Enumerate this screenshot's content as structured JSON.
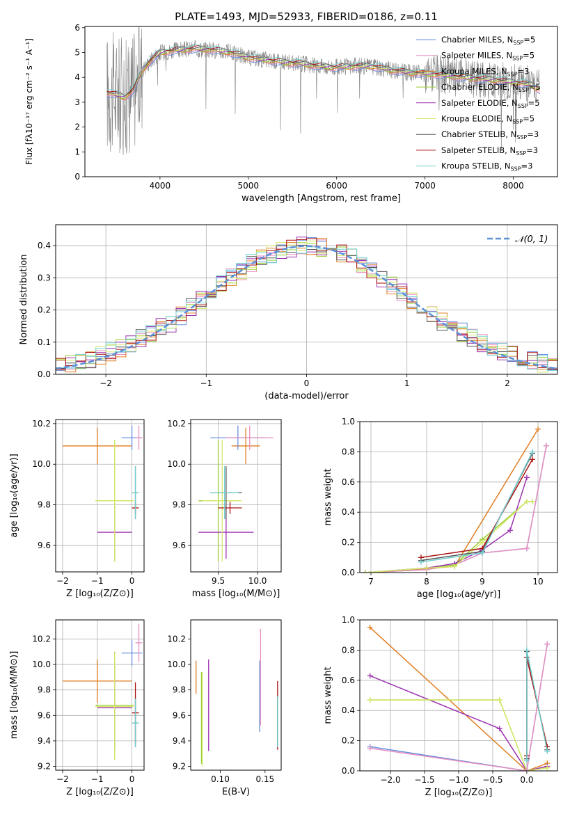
{
  "figure_title": "PLATE=1493, MJD=52933, FIBERID=0186, z=0.11",
  "colors": {
    "Chabrier MILES": "#6a8fe0",
    "Salpeter MILES": "#e88fc0",
    "Kroupa MILES": "#e07d20",
    "Chabrier ELODIE": "#9acd32",
    "Salpeter ELODIE": "#9b30b0",
    "Kroupa ELODIE": "#d4e86a",
    "Chabrier STELIB": "#555555",
    "Salpeter STELIB": "#aa1010",
    "Kroupa STELIB": "#70d0d0",
    "normal_fit": "#5b8fd6",
    "data": "#808080",
    "grid": "#b0b0b0"
  },
  "chart_data": [
    {
      "id": "spectrum",
      "type": "line",
      "xlabel": "wavelength [Angstrom, rest frame]",
      "ylabel": "Flux [fλ10⁻¹⁷ erg cm⁻² s⁻¹ A⁻¹]",
      "xlim": [
        3150,
        8500
      ],
      "ylim": [
        0,
        6.05
      ],
      "xticks": [
        4000,
        5000,
        6000,
        7000,
        8000
      ],
      "yticks": [
        0,
        1,
        2,
        3,
        4,
        5,
        6
      ],
      "grid": false,
      "legend_position": "top-right",
      "legend": [
        "Chabrier MILES, N_SSP=5",
        "Salpeter MILES, N_SSP=5",
        "Kroupa MILES, N_SSP=3",
        "Chabrier ELODIE, N_SSP=5",
        "Salpeter ELODIE, N_SSP=5",
        "Kroupa ELODIE, N_SSP=5",
        "Chabrier STELIB, N_SSP=3",
        "Salpeter STELIB, N_SSP=3",
        "Kroupa STELIB, N_SSP=3"
      ],
      "legend_models": [
        "Chabrier MILES",
        "Salpeter MILES",
        "Kroupa MILES",
        "Chabrier ELODIE",
        "Salpeter ELODIE",
        "Kroupa ELODIE",
        "Chabrier STELIB",
        "Salpeter STELIB",
        "Kroupa STELIB"
      ],
      "continuum": {
        "x": [
          3400,
          3600,
          3700,
          3800,
          3900,
          4000,
          4200,
          4400,
          4600,
          4800,
          5000,
          5200,
          5400,
          5600,
          5800,
          6000,
          6200,
          6400,
          6600,
          6800,
          7000,
          7200,
          7400,
          7600,
          7800,
          8000,
          8200,
          8300
        ],
        "y": [
          3.4,
          3.2,
          3.5,
          4.3,
          4.7,
          5.0,
          5.1,
          5.15,
          5.1,
          5.0,
          4.8,
          4.7,
          4.6,
          4.55,
          4.45,
          4.4,
          4.45,
          4.45,
          4.3,
          4.2,
          4.15,
          4.1,
          4.0,
          3.95,
          3.9,
          3.8,
          3.7,
          3.5
        ]
      }
    },
    {
      "id": "residuals",
      "type": "step",
      "xlabel": "(data-model)/error",
      "ylabel": "Normed distribution",
      "xlim": [
        -2.5,
        2.5
      ],
      "ylim": [
        0,
        0.465
      ],
      "xticks": [
        -2,
        -1,
        0,
        1,
        2
      ],
      "yticks": [
        0.0,
        0.1,
        0.2,
        0.3,
        0.4
      ],
      "grid": true,
      "legend_position": "top-right",
      "legend": [
        "𝒩(0, 1)"
      ],
      "bin_width": 0.1,
      "normal": {
        "mean": 0,
        "sigma": 1
      }
    },
    {
      "id": "age_vs_Z",
      "type": "errorbar",
      "xlabel": "Z [log₁₀(Z/Z⊙)]",
      "ylabel": "age  [log₁₀(age/yr)]",
      "xlim": [
        -2.2,
        0.35
      ],
      "ylim": [
        9.47,
        10.22
      ],
      "xticks": [
        -2,
        -1,
        0
      ],
      "yticks": [
        9.6,
        9.8,
        10.0,
        10.2
      ],
      "grid": true,
      "points": [
        {
          "model": "Kroupa MILES",
          "x": -1.0,
          "xerr": 1.0,
          "y": 10.09,
          "yerr": 0.09
        },
        {
          "model": "Chabrier MILES",
          "x": 0.0,
          "xerr": 0.3,
          "y": 10.13,
          "yerr": 0.06
        },
        {
          "model": "Salpeter MILES",
          "x": 0.2,
          "xerr": 0.1,
          "y": 10.13,
          "yerr": 0.06
        },
        {
          "model": "Chabrier ELODIE",
          "x": -0.5,
          "xerr": 0.55,
          "y": 9.82,
          "yerr": 0.3
        },
        {
          "model": "Salpeter ELODIE",
          "x": -0.5,
          "xerr": 0.5,
          "y": 9.665,
          "yerr": 0.13
        },
        {
          "model": "Kroupa ELODIE",
          "x": -0.5,
          "xerr": 0.55,
          "y": 9.82,
          "yerr": 0.3
        },
        {
          "model": "Chabrier STELIB",
          "x": 0.1,
          "xerr": 0.1,
          "y": 9.86,
          "yerr": 0.13
        },
        {
          "model": "Salpeter STELIB",
          "x": 0.1,
          "xerr": 0.1,
          "y": 9.785,
          "yerr": 0.03
        },
        {
          "model": "Kroupa STELIB",
          "x": 0.1,
          "xerr": 0.1,
          "y": 9.86,
          "yerr": 0.13
        }
      ]
    },
    {
      "id": "age_vs_mass",
      "type": "errorbar",
      "xlabel": "mass [log₁₀(M/M⊙)]",
      "ylabel": "",
      "xlim": [
        9.15,
        10.3
      ],
      "ylim": [
        9.47,
        10.22
      ],
      "xticks": [
        9.5,
        10.0
      ],
      "yticks": [
        9.6,
        9.8,
        10.0,
        10.2
      ],
      "grid": true,
      "points": [
        {
          "model": "Kroupa MILES",
          "x": 9.85,
          "xerr": 0.18,
          "y": 10.09,
          "yerr": 0.09
        },
        {
          "model": "Chabrier MILES",
          "x": 9.75,
          "xerr": 0.35,
          "y": 10.13,
          "yerr": 0.06
        },
        {
          "model": "Salpeter MILES",
          "x": 9.9,
          "xerr": 0.3,
          "y": 10.13,
          "yerr": 0.06
        },
        {
          "model": "Chabrier ELODIE",
          "x": 9.5,
          "xerr": 0.25,
          "y": 9.82,
          "yerr": 0.3
        },
        {
          "model": "Salpeter ELODIE",
          "x": 9.6,
          "xerr": 0.35,
          "y": 9.665,
          "yerr": 0.13
        },
        {
          "model": "Kroupa ELODIE",
          "x": 9.55,
          "xerr": 0.25,
          "y": 9.82,
          "yerr": 0.3
        },
        {
          "model": "Chabrier STELIB",
          "x": 9.6,
          "xerr": 0.2,
          "y": 9.86,
          "yerr": 0.13
        },
        {
          "model": "Salpeter STELIB",
          "x": 9.65,
          "xerr": 0.15,
          "y": 9.785,
          "yerr": 0.03
        },
        {
          "model": "Kroupa STELIB",
          "x": 9.58,
          "xerr": 0.18,
          "y": 9.86,
          "yerr": 0.13
        }
      ]
    },
    {
      "id": "mw_vs_age",
      "type": "line",
      "xlabel": "age  [log₁₀(age/yr)]",
      "ylabel": "mass weight",
      "xlim": [
        6.8,
        10.35
      ],
      "ylim": [
        0,
        1.0
      ],
      "xticks": [
        7,
        8,
        9,
        10
      ],
      "yticks": [
        0.0,
        0.2,
        0.4,
        0.6,
        0.8,
        1.0
      ],
      "grid": true,
      "series": [
        {
          "model": "Chabrier MILES",
          "x": [
            6.9,
            8.0,
            8.5,
            9.0,
            9.8,
            10.15
          ],
          "y": [
            0.0,
            0.02,
            0.05,
            0.13,
            0.16,
            0.84
          ]
        },
        {
          "model": "Salpeter MILES",
          "x": [
            6.9,
            8.0,
            8.5,
            9.0,
            9.8,
            10.15
          ],
          "y": [
            0.0,
            0.02,
            0.05,
            0.13,
            0.16,
            0.84
          ]
        },
        {
          "model": "Kroupa MILES",
          "x": [
            6.9,
            8.5,
            10.0
          ],
          "y": [
            0.0,
            0.04,
            0.95
          ]
        },
        {
          "model": "Chabrier ELODIE",
          "x": [
            6.9,
            8.0,
            8.5,
            9.0,
            9.8,
            9.9
          ],
          "y": [
            0.0,
            0.03,
            0.05,
            0.22,
            0.47,
            0.47
          ]
        },
        {
          "model": "Salpeter ELODIE",
          "x": [
            6.9,
            8.0,
            8.5,
            9.0,
            9.5,
            9.8
          ],
          "y": [
            0.0,
            0.03,
            0.06,
            0.15,
            0.28,
            0.63
          ]
        },
        {
          "model": "Kroupa ELODIE",
          "x": [
            6.9,
            8.0,
            8.5,
            9.0,
            9.8,
            9.9
          ],
          "y": [
            0.0,
            0.03,
            0.04,
            0.2,
            0.47,
            0.47
          ]
        },
        {
          "model": "Chabrier STELIB",
          "x": [
            7.9,
            9.0,
            9.9
          ],
          "y": [
            0.08,
            0.14,
            0.79
          ]
        },
        {
          "model": "Salpeter STELIB",
          "x": [
            7.9,
            9.0,
            9.9
          ],
          "y": [
            0.1,
            0.16,
            0.75
          ]
        },
        {
          "model": "Kroupa STELIB",
          "x": [
            7.9,
            9.0,
            9.9
          ],
          "y": [
            0.07,
            0.13,
            0.8
          ]
        }
      ]
    },
    {
      "id": "mass_vs_Z",
      "type": "errorbar",
      "xlabel": "Z [log₁₀(Z/Z⊙)]",
      "ylabel": "mass [log₁₀(M/M⊙)]",
      "xlim": [
        -2.2,
        0.35
      ],
      "ylim": [
        9.17,
        10.35
      ],
      "xticks": [
        -2,
        -1,
        0
      ],
      "yticks": [
        9.2,
        9.4,
        9.6,
        9.8,
        10.0,
        10.2
      ],
      "grid": true,
      "points": [
        {
          "model": "Kroupa MILES",
          "x": -1.0,
          "xerr": 1.0,
          "y": 9.87,
          "yerr": 0.17
        },
        {
          "model": "Chabrier MILES",
          "x": 0.0,
          "xerr": 0.3,
          "y": 10.09,
          "yerr": 0.1
        },
        {
          "model": "Salpeter MILES",
          "x": 0.2,
          "xerr": 0.1,
          "y": 10.17,
          "yerr": 0.15
        },
        {
          "model": "Chabrier ELODIE",
          "x": -0.5,
          "xerr": 0.55,
          "y": 9.68,
          "yerr": 0.42
        },
        {
          "model": "Salpeter ELODIE",
          "x": -0.5,
          "xerr": 0.5,
          "y": 9.66,
          "yerr": 0.33
        },
        {
          "model": "Kroupa ELODIE",
          "x": -0.5,
          "xerr": 0.55,
          "y": 9.67,
          "yerr": 0.42
        },
        {
          "model": "Chabrier STELIB",
          "x": 0.1,
          "xerr": 0.1,
          "y": 9.54,
          "yerr": 0.19
        },
        {
          "model": "Salpeter STELIB",
          "x": 0.1,
          "xerr": 0.1,
          "y": 9.62,
          "yerr": 0.24
        },
        {
          "model": "Kroupa STELIB",
          "x": 0.1,
          "xerr": 0.1,
          "y": 9.54,
          "yerr": 0.19
        }
      ]
    },
    {
      "id": "mass_vs_ebv",
      "type": "errorbar",
      "xlabel": "E(B-V)",
      "ylabel": "",
      "xlim": [
        0.067,
        0.168
      ],
      "ylim": [
        9.17,
        10.35
      ],
      "xticks": [
        0.1,
        0.15
      ],
      "yticks": [
        9.2,
        9.4,
        9.6,
        9.8,
        10.0,
        10.2
      ],
      "grid": false,
      "points": [
        {
          "model": "Kroupa MILES",
          "x": 0.073,
          "xerr": 0,
          "y": 9.9,
          "yerr": 0.13
        },
        {
          "model": "Chabrier ELODIE",
          "x": 0.079,
          "xerr": 0,
          "y": 9.58,
          "yerr": 0.36
        },
        {
          "model": "Kroupa ELODIE",
          "x": 0.08,
          "xerr": 0,
          "y": 9.57,
          "yerr": 0.37
        },
        {
          "model": "Salpeter ELODIE",
          "x": 0.087,
          "xerr": 0,
          "y": 9.68,
          "yerr": 0.36
        },
        {
          "model": "Chabrier MILES",
          "x": 0.144,
          "xerr": 0,
          "y": 9.75,
          "yerr": 0.28
        },
        {
          "model": "Salpeter MILES",
          "x": 0.145,
          "xerr": 0,
          "y": 9.9,
          "yerr": 0.38
        },
        {
          "model": "Chabrier STELIB",
          "x": 0.164,
          "xerr": 0,
          "y": 9.55,
          "yerr": 0.2
        },
        {
          "model": "Salpeter STELIB",
          "x": 0.164,
          "xerr": 0,
          "y": 9.6,
          "yerr": 0.27
        },
        {
          "model": "Kroupa STELIB",
          "x": 0.164,
          "xerr": 0,
          "y": 9.55,
          "yerr": 0.2
        }
      ]
    },
    {
      "id": "mw_vs_Z",
      "type": "line",
      "xlabel": "Z [log₁₀(Z/Z⊙)]",
      "ylabel": "mass weight",
      "xlim": [
        -2.45,
        0.45
      ],
      "ylim": [
        0,
        1.0
      ],
      "xticks": [
        -2.0,
        -1.5,
        -1.0,
        -0.5,
        0.0
      ],
      "yticks": [
        0.0,
        0.2,
        0.4,
        0.6,
        0.8,
        1.0
      ],
      "grid": true,
      "series": [
        {
          "model": "Kroupa MILES",
          "x": [
            -2.3,
            0.0,
            0.3
          ],
          "y": [
            0.95,
            0.0,
            0.05
          ]
        },
        {
          "model": "Salpeter ELODIE",
          "x": [
            -2.3,
            -0.4,
            0.0,
            0.3
          ],
          "y": [
            0.63,
            0.28,
            0.0,
            0.03
          ]
        },
        {
          "model": "Chabrier ELODIE",
          "x": [
            -2.3,
            -0.4,
            0.0,
            0.3
          ],
          "y": [
            0.47,
            0.47,
            0.0,
            0.02
          ]
        },
        {
          "model": "Kroupa ELODIE",
          "x": [
            -2.3,
            -0.4,
            0.0,
            0.3
          ],
          "y": [
            0.47,
            0.47,
            0.0,
            0.02
          ]
        },
        {
          "model": "Chabrier MILES",
          "x": [
            -2.3,
            0.0,
            0.3
          ],
          "y": [
            0.16,
            0.0,
            0.84
          ]
        },
        {
          "model": "Salpeter MILES",
          "x": [
            -2.3,
            0.0,
            0.3
          ],
          "y": [
            0.15,
            0.0,
            0.84
          ]
        },
        {
          "model": "Chabrier STELIB",
          "x": [
            0.0,
            0.0,
            0.3
          ],
          "y": [
            0.08,
            0.79,
            0.14
          ]
        },
        {
          "model": "Salpeter STELIB",
          "x": [
            0.0,
            0.0,
            0.3
          ],
          "y": [
            0.1,
            0.75,
            0.16
          ]
        },
        {
          "model": "Kroupa STELIB",
          "x": [
            0.0,
            0.0,
            0.3
          ],
          "y": [
            0.07,
            0.8,
            0.13
          ]
        }
      ]
    }
  ]
}
